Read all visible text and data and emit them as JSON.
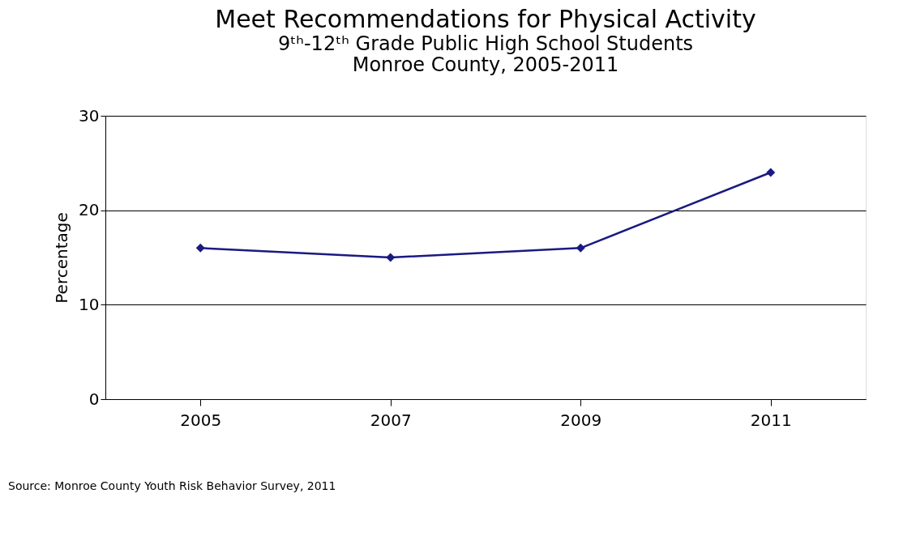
{
  "chart_data": {
    "type": "line",
    "title": "Meet Recommendations for Physical Activity",
    "subtitle": "9ᵗʰ-12ᵗʰ Grade Public High School Students\nMonroe County, 2005-2011",
    "ylabel": "Percentage",
    "categories": [
      "2005",
      "2007",
      "2009",
      "2011"
    ],
    "series": [
      {
        "color": "#1a1a80",
        "values": [
          16,
          15,
          16,
          24
        ]
      }
    ],
    "ylim": [
      0,
      30
    ],
    "yticks": [
      0,
      10,
      20,
      30
    ],
    "grid": "y",
    "marker": "diamond",
    "line_style": "solid",
    "legend": false,
    "annotations": [
      "Source: Monroe County Youth Risk Behavior Survey, 2011"
    ]
  }
}
